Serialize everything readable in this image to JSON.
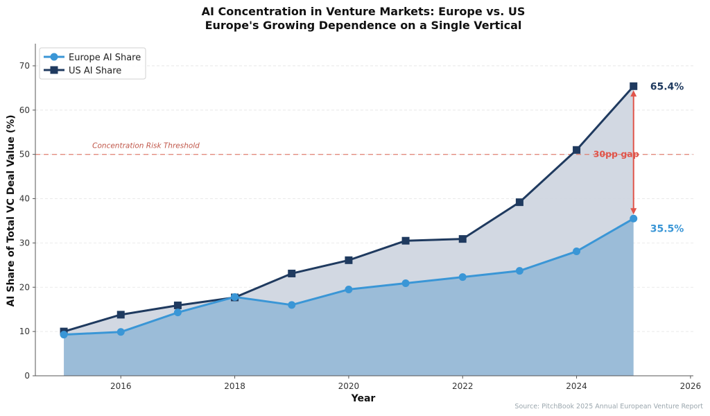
{
  "chart_data": {
    "type": "line",
    "title": "AI Concentration in Venture Markets: Europe vs. US",
    "subtitle": "Europe's Growing Dependence on a Single Vertical",
    "xlabel": "Year",
    "ylabel": "AI Share of Total VC Deal Value (%)",
    "x": [
      2015,
      2016,
      2017,
      2018,
      2019,
      2020,
      2021,
      2022,
      2023,
      2024,
      2025
    ],
    "series": [
      {
        "name": "Europe AI Share",
        "color": "#3a96d6",
        "marker": "circle",
        "fill_color": "#9bbcd8",
        "values": [
          9.3,
          9.9,
          14.3,
          17.8,
          16.0,
          19.5,
          20.9,
          22.3,
          23.7,
          28.1,
          35.5
        ]
      },
      {
        "name": "US AI Share",
        "color": "#1f3a5f",
        "marker": "square",
        "fill_color": "#d0d6e0",
        "values": [
          10.0,
          13.8,
          15.9,
          17.7,
          23.1,
          26.1,
          30.5,
          30.9,
          39.2,
          51.0,
          65.4
        ]
      }
    ],
    "xlim": [
      2014.5,
      2026.05
    ],
    "ylim": [
      0,
      75
    ],
    "xticks": [
      2016,
      2018,
      2020,
      2022,
      2024,
      2026
    ],
    "yticks": [
      0,
      10,
      20,
      30,
      40,
      50,
      60,
      70
    ],
    "grid": "y-dashed",
    "legend_position": "top-left",
    "annotations": {
      "threshold": {
        "value": 50,
        "label": "Concentration Risk Threshold",
        "color": "#e07a6a"
      },
      "gap": {
        "x": 2025,
        "from": 35.5,
        "to": 65.4,
        "label": "30pp gap",
        "color": "#e0544a"
      },
      "end_labels": [
        {
          "series": "US AI Share",
          "text": "65.4%",
          "color": "#1f3a5f"
        },
        {
          "series": "Europe AI Share",
          "text": "35.5%",
          "color": "#3a96d6"
        }
      ]
    },
    "source": "Source: PitchBook 2025 Annual European Venture Report"
  }
}
